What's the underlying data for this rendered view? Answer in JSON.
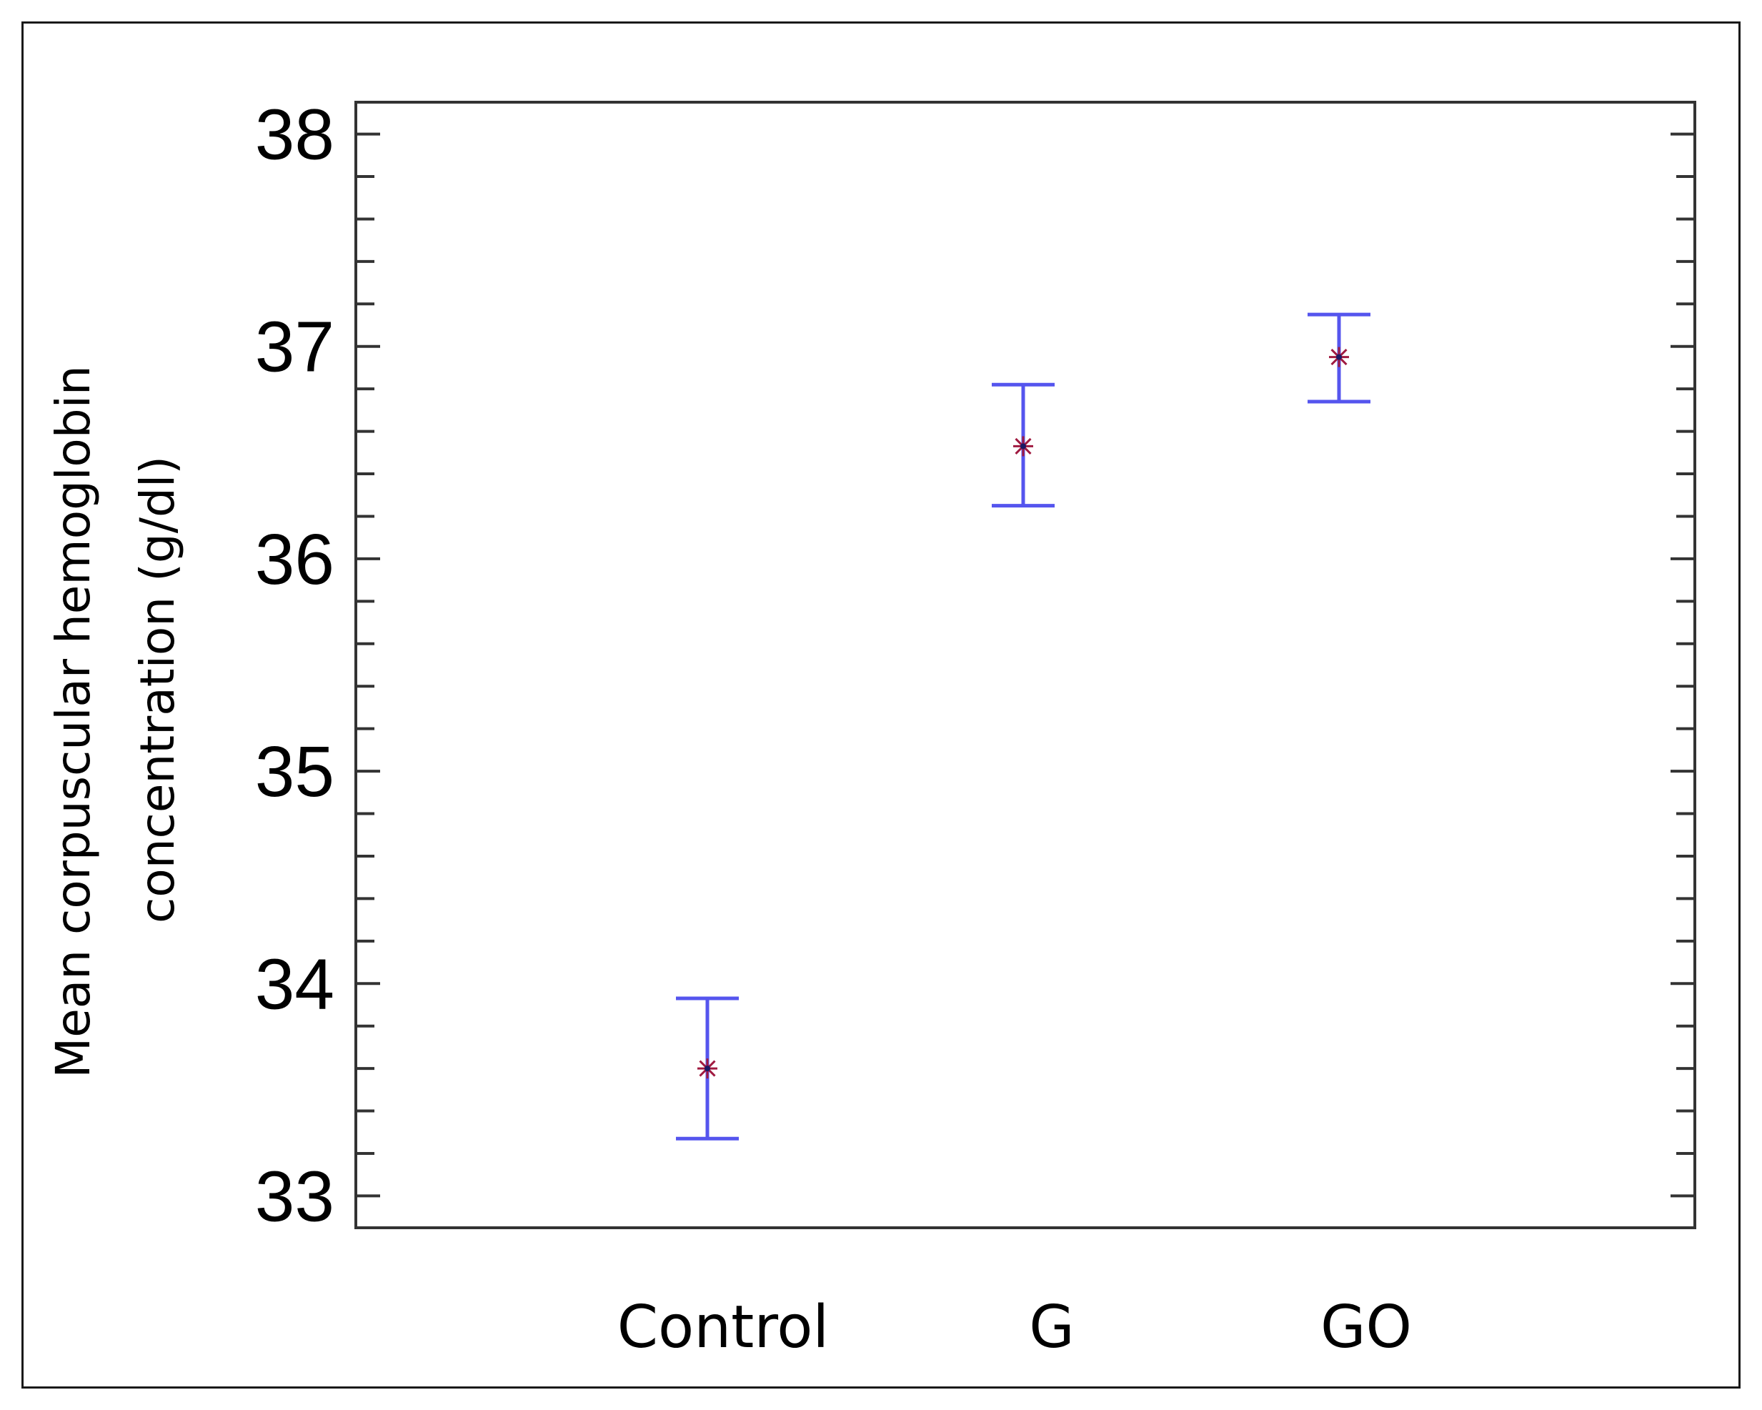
{
  "chart_data": {
    "type": "scatter",
    "subtype": "means-with-error-bars",
    "title": "",
    "xlabel": "",
    "ylabel": [
      "Mean corpuscular hemoglobin",
      "concentration (g/dl)"
    ],
    "categories": [
      "Control",
      "G",
      "GO"
    ],
    "series": [
      {
        "values": [
          33.6,
          36.53,
          36.95
        ],
        "lower": [
          33.27,
          36.25,
          36.74
        ],
        "upper": [
          33.93,
          36.82,
          37.15
        ]
      }
    ],
    "ylim": [
      32.85,
      38.15
    ],
    "yticks": [
      33,
      34,
      35,
      36,
      37,
      38
    ],
    "ytick_labels": [
      "33",
      "34",
      "35",
      "36",
      "37",
      "38"
    ],
    "minor_ticks_per_major": 5,
    "grid": false,
    "legend": "none",
    "colors": {
      "error_bar": "#5555ee",
      "marker": "#a01a40",
      "marker_center": "#1a1a66",
      "axis": "#333333"
    }
  }
}
